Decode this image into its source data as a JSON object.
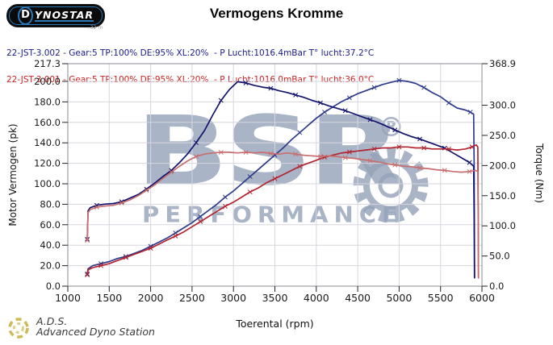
{
  "logo": {
    "text": "DYNOSTAR",
    "d": "D",
    "sub_text": "..32 m"
  },
  "title": "Vermogens Kromme",
  "legend": {
    "line1": "22-JST-3.002 - Gear:5 TP:100% DE:95% XL:20%  - P Lucht:1016.4mBar T° lucht:37.2°C",
    "line2": "22-JST-3.001 - Gear:5 TP:100% DE:95% XL:20%  - P Lucht:1016.0mBar T° lucht:36.0°C",
    "line1_color": "#1a1a8c",
    "line2_color": "#cc2222"
  },
  "watermark": {
    "main": "BSR",
    "sub": "PERFORMANCE",
    "registered": "®",
    "color": "#94a2b8"
  },
  "footer": {
    "abbr": "A.D.S.",
    "name": "Advanced Dyno Station"
  },
  "chart_data": {
    "type": "line",
    "title": "Vermogens Kromme",
    "xlabel": "Toerental (rpm)",
    "ylabel_left": "Motor Vermogen (pk)",
    "ylabel_right": "Torque (Nm)",
    "x_min": 1000,
    "x_max": 6000,
    "x_ticks": [
      1000,
      1500,
      2000,
      2500,
      3000,
      3500,
      4000,
      4500,
      5000,
      5500,
      6000
    ],
    "y_left_max": 217.3,
    "y_left_ticks": [
      0,
      20,
      40,
      60,
      80,
      100,
      120,
      140,
      160,
      180,
      200,
      217.3
    ],
    "y_right_max": 368.9,
    "y_right_ticks": [
      0,
      50,
      100,
      150,
      200,
      250,
      300,
      368.9
    ],
    "grid": true,
    "legend_position": "top-left",
    "series": [
      {
        "name": "power-22-JST-3.002",
        "axis": "left",
        "unit": "pk",
        "color": "#2e3a8c",
        "marker": "x",
        "points": [
          [
            1235,
            12
          ],
          [
            1245,
            17
          ],
          [
            1300,
            20
          ],
          [
            1400,
            22
          ],
          [
            1500,
            24
          ],
          [
            1600,
            27
          ],
          [
            1700,
            29
          ],
          [
            1800,
            32
          ],
          [
            1900,
            35
          ],
          [
            2000,
            39
          ],
          [
            2100,
            43
          ],
          [
            2200,
            47
          ],
          [
            2300,
            52
          ],
          [
            2400,
            57
          ],
          [
            2500,
            62
          ],
          [
            2600,
            68
          ],
          [
            2700,
            74
          ],
          [
            2800,
            80
          ],
          [
            2900,
            87
          ],
          [
            3000,
            93
          ],
          [
            3100,
            100
          ],
          [
            3200,
            107
          ],
          [
            3300,
            114
          ],
          [
            3400,
            121
          ],
          [
            3500,
            128
          ],
          [
            3600,
            135
          ],
          [
            3700,
            143
          ],
          [
            3800,
            150
          ],
          [
            3900,
            157
          ],
          [
            4000,
            164
          ],
          [
            4100,
            170
          ],
          [
            4200,
            175
          ],
          [
            4300,
            180
          ],
          [
            4400,
            184
          ],
          [
            4500,
            188
          ],
          [
            4600,
            191
          ],
          [
            4700,
            194
          ],
          [
            4800,
            197
          ],
          [
            4900,
            199
          ],
          [
            5000,
            201
          ],
          [
            5100,
            200
          ],
          [
            5200,
            198
          ],
          [
            5300,
            194
          ],
          [
            5400,
            189
          ],
          [
            5500,
            185
          ],
          [
            5600,
            179
          ],
          [
            5700,
            174
          ],
          [
            5800,
            172
          ],
          [
            5860,
            170
          ],
          [
            5900,
            168
          ],
          [
            5905,
            120
          ],
          [
            5908,
            60
          ],
          [
            5910,
            8
          ]
        ]
      },
      {
        "name": "torque-22-JST-3.002",
        "axis": "right",
        "unit": "Nm",
        "color": "#13136e",
        "marker": "x",
        "points": [
          [
            1235,
            78
          ],
          [
            1245,
            125
          ],
          [
            1270,
            130
          ],
          [
            1350,
            134
          ],
          [
            1450,
            136
          ],
          [
            1550,
            137
          ],
          [
            1650,
            140
          ],
          [
            1750,
            146
          ],
          [
            1850,
            152
          ],
          [
            1950,
            161
          ],
          [
            2050,
            171
          ],
          [
            2150,
            182
          ],
          [
            2250,
            192
          ],
          [
            2350,
            205
          ],
          [
            2450,
            220
          ],
          [
            2550,
            238
          ],
          [
            2650,
            258
          ],
          [
            2750,
            284
          ],
          [
            2850,
            308
          ],
          [
            2950,
            326
          ],
          [
            3050,
            339
          ],
          [
            3150,
            337
          ],
          [
            3250,
            333
          ],
          [
            3350,
            330
          ],
          [
            3450,
            328
          ],
          [
            3550,
            324
          ],
          [
            3650,
            321
          ],
          [
            3750,
            317
          ],
          [
            3850,
            313
          ],
          [
            3950,
            308
          ],
          [
            4050,
            304
          ],
          [
            4150,
            299
          ],
          [
            4250,
            295
          ],
          [
            4350,
            291
          ],
          [
            4450,
            286
          ],
          [
            4550,
            281
          ],
          [
            4650,
            276
          ],
          [
            4750,
            271
          ],
          [
            4850,
            265
          ],
          [
            4950,
            259
          ],
          [
            5050,
            253
          ],
          [
            5150,
            248
          ],
          [
            5250,
            244
          ],
          [
            5350,
            239
          ],
          [
            5450,
            234
          ],
          [
            5550,
            229
          ],
          [
            5650,
            221
          ],
          [
            5750,
            213
          ],
          [
            5850,
            205
          ],
          [
            5900,
            199
          ],
          [
            5905,
            120
          ],
          [
            5908,
            60
          ],
          [
            5910,
            14
          ]
        ]
      },
      {
        "name": "power-22-JST-3.001",
        "axis": "left",
        "unit": "pk",
        "color": "#b22430",
        "marker": "x",
        "points": [
          [
            1235,
            11
          ],
          [
            1245,
            16
          ],
          [
            1300,
            18
          ],
          [
            1400,
            20
          ],
          [
            1500,
            22
          ],
          [
            1600,
            25
          ],
          [
            1700,
            28
          ],
          [
            1800,
            31
          ],
          [
            1900,
            34
          ],
          [
            2000,
            37
          ],
          [
            2100,
            41
          ],
          [
            2200,
            45
          ],
          [
            2300,
            49
          ],
          [
            2400,
            53
          ],
          [
            2500,
            58
          ],
          [
            2600,
            63
          ],
          [
            2700,
            68
          ],
          [
            2800,
            73
          ],
          [
            2900,
            78
          ],
          [
            3000,
            82
          ],
          [
            3100,
            87
          ],
          [
            3200,
            92
          ],
          [
            3300,
            96
          ],
          [
            3400,
            101
          ],
          [
            3500,
            105
          ],
          [
            3600,
            109
          ],
          [
            3700,
            113
          ],
          [
            3800,
            117
          ],
          [
            3900,
            120
          ],
          [
            4000,
            123
          ],
          [
            4100,
            126
          ],
          [
            4200,
            128
          ],
          [
            4300,
            130
          ],
          [
            4400,
            131
          ],
          [
            4500,
            132
          ],
          [
            4600,
            133
          ],
          [
            4700,
            134
          ],
          [
            4800,
            135
          ],
          [
            4900,
            135
          ],
          [
            5000,
            136
          ],
          [
            5100,
            136
          ],
          [
            5200,
            135
          ],
          [
            5300,
            135
          ],
          [
            5400,
            134
          ],
          [
            5500,
            134
          ],
          [
            5600,
            134
          ],
          [
            5700,
            133
          ],
          [
            5800,
            134
          ],
          [
            5880,
            136
          ],
          [
            5930,
            138
          ],
          [
            5950,
            136
          ],
          [
            5955,
            70
          ],
          [
            5958,
            8
          ]
        ]
      },
      {
        "name": "torque-22-JST-3.001",
        "axis": "right",
        "unit": "Nm",
        "color": "#c96e6e",
        "marker": "x",
        "points": [
          [
            1235,
            76
          ],
          [
            1245,
            122
          ],
          [
            1270,
            127
          ],
          [
            1350,
            131
          ],
          [
            1450,
            133
          ],
          [
            1550,
            134
          ],
          [
            1650,
            138
          ],
          [
            1750,
            143
          ],
          [
            1850,
            150
          ],
          [
            1950,
            159
          ],
          [
            2050,
            168
          ],
          [
            2150,
            179
          ],
          [
            2250,
            189
          ],
          [
            2350,
            199
          ],
          [
            2450,
            208
          ],
          [
            2550,
            215
          ],
          [
            2650,
            219
          ],
          [
            2750,
            221
          ],
          [
            2850,
            222
          ],
          [
            2950,
            222
          ],
          [
            3050,
            221
          ],
          [
            3150,
            222
          ],
          [
            3250,
            221
          ],
          [
            3350,
            222
          ],
          [
            3450,
            220
          ],
          [
            3550,
            219
          ],
          [
            3650,
            221
          ],
          [
            3750,
            219
          ],
          [
            3850,
            217
          ],
          [
            3950,
            216
          ],
          [
            4050,
            215
          ],
          [
            4150,
            216
          ],
          [
            4250,
            215
          ],
          [
            4350,
            213
          ],
          [
            4450,
            212
          ],
          [
            4550,
            210
          ],
          [
            4650,
            208
          ],
          [
            4750,
            206
          ],
          [
            4850,
            203
          ],
          [
            4950,
            201
          ],
          [
            5050,
            199
          ],
          [
            5150,
            198
          ],
          [
            5250,
            196
          ],
          [
            5350,
            195
          ],
          [
            5450,
            193
          ],
          [
            5550,
            192
          ],
          [
            5650,
            190
          ],
          [
            5750,
            189
          ],
          [
            5850,
            190
          ],
          [
            5920,
            192
          ],
          [
            5950,
            190
          ],
          [
            5955,
            100
          ],
          [
            5958,
            14
          ]
        ]
      }
    ]
  }
}
